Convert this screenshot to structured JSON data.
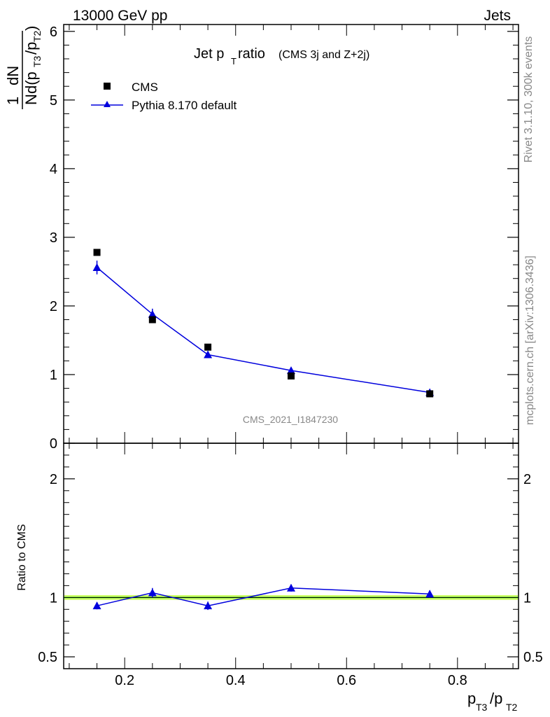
{
  "header": {
    "left": "13000 GeV pp",
    "right": "Jets"
  },
  "title": {
    "main": "Jet p",
    "main_sub": "T",
    "main_tail": " ratio",
    "small": "(CMS 3j and Z+2j)"
  },
  "legend": {
    "entries": [
      {
        "label": "CMS"
      },
      {
        "label": "Pythia 8.170 default"
      }
    ]
  },
  "side_text": {
    "upper": "Rivet 3.1.10,  300k events",
    "lower": "mcplots.cern.ch [arXiv:1306.3436]"
  },
  "watermark": "CMS_2021_I1847230",
  "ylabel_upper": {
    "num_1": "1",
    "den_N": "N",
    "dN": "dN",
    "d": "d(p",
    "sub_t3": "T3",
    "slash": "/p",
    "sub_t2": "T2",
    "close": ")"
  },
  "ylabel_lower": "Ratio to CMS",
  "xlabel": {
    "p1": "p",
    "s1": "T3",
    "mid": "/p",
    "s2": "T2"
  },
  "colors": {
    "data": "#000000",
    "mc": "#0000dd",
    "band_fill": "#ccff66",
    "ref_line": "#00bb00"
  },
  "chart_data": [
    {
      "type": "scatter",
      "panel": "main",
      "xlim": [
        0.09,
        0.91
      ],
      "ylim": [
        0,
        6.1
      ],
      "x_ticks": [
        0.2,
        0.4,
        0.6,
        0.8
      ],
      "y_ticks": [
        0,
        1,
        2,
        3,
        4,
        5,
        6
      ],
      "y_tick_labels": [
        "0",
        "1",
        "2",
        "3",
        "4",
        "5",
        "6"
      ],
      "series": [
        {
          "name": "CMS",
          "marker": "square",
          "x": [
            0.15,
            0.25,
            0.35,
            0.5,
            0.75
          ],
          "y": [
            2.78,
            1.8,
            1.4,
            0.98,
            0.72
          ]
        },
        {
          "name": "Pythia 8.170 default",
          "marker": "triangle",
          "x": [
            0.15,
            0.25,
            0.35,
            0.5,
            0.75
          ],
          "y": [
            2.56,
            1.88,
            1.29,
            1.06,
            0.74
          ],
          "yerr": [
            0.1,
            0.08,
            0.05,
            0.03,
            0.03
          ]
        }
      ]
    },
    {
      "type": "line",
      "panel": "ratio",
      "xlim": [
        0.09,
        0.91
      ],
      "ylim": [
        0.4,
        2.3
      ],
      "x_ticks": [
        0.2,
        0.4,
        0.6,
        0.8
      ],
      "x_tick_labels": [
        "0.2",
        "0.4",
        "0.6",
        "0.8"
      ],
      "y_ticks": [
        0.5,
        1,
        2
      ],
      "y_tick_labels": [
        "0.5",
        "1",
        "2"
      ],
      "reference": 1,
      "band": [
        0.98,
        1.02
      ],
      "series": [
        {
          "name": "Pythia 8.170 default",
          "x": [
            0.15,
            0.25,
            0.35,
            0.5,
            0.75
          ],
          "y": [
            0.93,
            1.04,
            0.93,
            1.08,
            1.03
          ],
          "yerr": [
            0.03,
            0.04,
            0.035,
            0.03,
            0.03
          ]
        }
      ]
    }
  ]
}
